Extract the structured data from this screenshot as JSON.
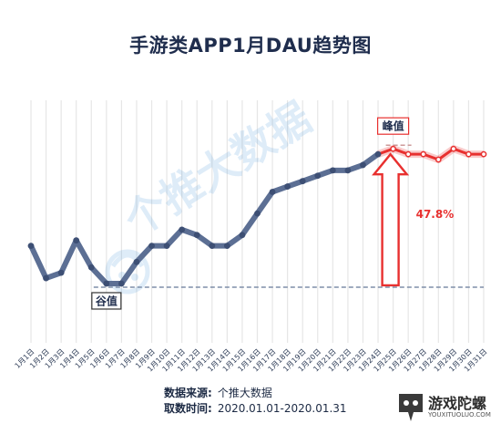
{
  "chart_data": {
    "type": "line",
    "title": "手游类APP1月DAU趋势图",
    "x": [
      "1月1日",
      "1月2日",
      "1月3日",
      "1月4日",
      "1月5日",
      "1月6日",
      "1月7日",
      "1月8日",
      "1月9日",
      "1月10日",
      "1月11日",
      "1月12日",
      "1月13日",
      "1月14日",
      "1月15日",
      "1月16日",
      "1月17日",
      "1月18日",
      "1月19日",
      "1月20日",
      "1月21日",
      "1月22日",
      "1月23日",
      "1月24日",
      "1月25日",
      "1月26日",
      "1月27日",
      "1月28日",
      "1月29日",
      "1月30日",
      "1月31日"
    ],
    "values": [
      58,
      52,
      53,
      59,
      54,
      51,
      51,
      55,
      58,
      58,
      61,
      60,
      58,
      58,
      60,
      64,
      68,
      69,
      70,
      71,
      72,
      72,
      73,
      75,
      76,
      75,
      75,
      74,
      76,
      75,
      75
    ],
    "highlight_start_index": 24,
    "ylim": [
      40,
      85
    ],
    "grid": "vertical",
    "annotations": {
      "low_label": "谷值",
      "peak_label": "峰值",
      "growth_label": "47.8%"
    },
    "colors": {
      "line": "#5c6f94",
      "highlight": "#e8302f",
      "reference": "#7f8ea8",
      "grid": "#e6e6e6"
    }
  },
  "watermark": {
    "text": "个推大数据"
  },
  "footer": {
    "source_label": "数据来源:",
    "source_value": "个推大数据",
    "range_label": "取数时间:",
    "range_value": "2020.01.01-2020.01.31"
  },
  "brand": {
    "name": "游戏陀螺",
    "url": "YOUXITUOLUO.COM"
  }
}
